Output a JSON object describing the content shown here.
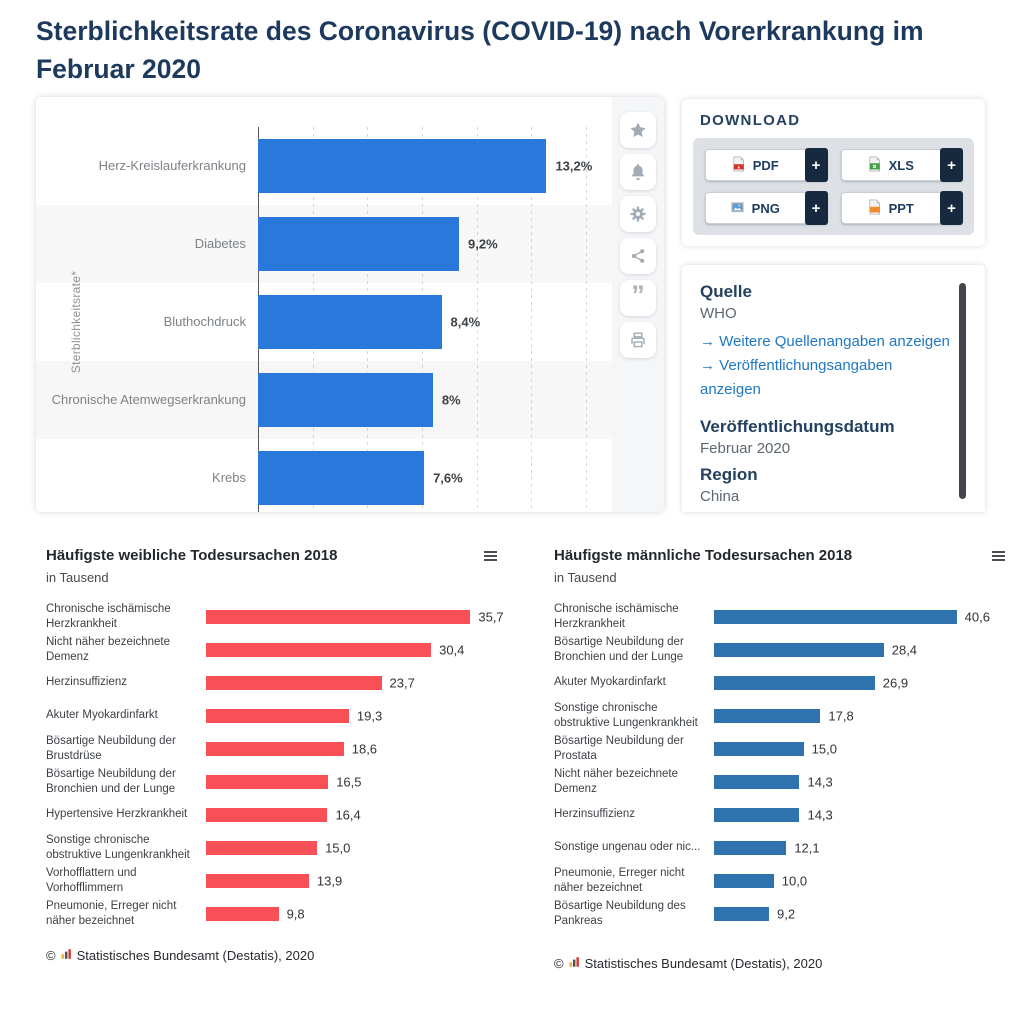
{
  "page": {
    "title_line1": "Sterblichkeitsrate des Coronavirus (COVID-19) nach Vorerkrankung im",
    "title_line2": "Februar 2020"
  },
  "toolbar": {
    "icons": [
      "favorite-star",
      "notification-bell",
      "settings-gear",
      "share",
      "citation-quote",
      "print"
    ],
    "quote_glyph": "”"
  },
  "download": {
    "heading": "DOWNLOAD",
    "plus_label": "+",
    "buttons": [
      {
        "label": "PDF",
        "icon": "pdf-file-icon"
      },
      {
        "label": "XLS",
        "icon": "xls-file-icon"
      },
      {
        "label": "PNG",
        "icon": "png-file-icon"
      },
      {
        "label": "PPT",
        "icon": "ppt-file-icon"
      }
    ]
  },
  "info": {
    "source_heading": "Quelle",
    "source_value": "WHO",
    "link_arrow": "→",
    "link1": "Weitere Quellenangaben anzeigen",
    "link2": "Veröffentlichungsangaben anzeigen",
    "date_heading": "Veröffentlichungsdatum",
    "date_value": "Februar 2020",
    "region_heading": "Region",
    "region_value": "China"
  },
  "chart_data": [
    {
      "id": "covid-mortality",
      "type": "bar",
      "orientation": "horizontal",
      "title": "Sterblichkeitsrate des Coronavirus (COVID-19) nach Vorerkrankung im Februar 2020",
      "ylabel": "Sterblichkeitsrate*",
      "categories": [
        "Herz-Kreislauferkrankung",
        "Diabetes",
        "Bluthochdruck",
        "Chronische Atemwegserkrankung",
        "Krebs"
      ],
      "values": [
        13.2,
        9.2,
        8.4,
        8,
        7.6
      ],
      "value_labels": [
        "13,2%",
        "9,2%",
        "8,4%",
        "8%",
        "7,6%"
      ],
      "unit": "%",
      "axis_max": 16.2,
      "gridline_step": 2.5,
      "grid": "dotted-vertical",
      "bar_color": "#2a78dc",
      "row_stripes": true
    },
    {
      "id": "female-causes-of-death",
      "type": "bar",
      "orientation": "horizontal",
      "title": "Häufigste weibliche Todesursachen 2018",
      "subtitle": "in Tausend",
      "categories": [
        "Chronische ischämische Herzkrankheit",
        "Nicht näher bezeichnete Demenz",
        "Herzinsuffizienz",
        "Akuter Myokardinfarkt",
        "Bösartige Neubildung der Brustdrüse",
        "Bösartige Neubildung der Bronchien und der Lunge",
        "Hypertensive Herzkrankheit",
        "Sonstige chronische obstruktive Lungenkrankheit",
        "Vorhofflattern und Vorhofflimmern",
        "Pneumonie, Erreger nicht näher bezeichnet"
      ],
      "values": [
        35.7,
        30.4,
        23.7,
        19.3,
        18.6,
        16.5,
        16.4,
        15.0,
        13.9,
        9.8
      ],
      "value_labels": [
        "35,7",
        "30,4",
        "23,7",
        "19,3",
        "18,6",
        "16,5",
        "16,4",
        "15,0",
        "13,9",
        "9,8"
      ],
      "scale_max": 37,
      "grid": "off",
      "bar_color": "#f94f57",
      "copyright": "©",
      "source": "Statistisches Bundesamt (Destatis), 2020"
    },
    {
      "id": "male-causes-of-death",
      "type": "bar",
      "orientation": "horizontal",
      "title": "Häufigste männliche Todesursachen 2018",
      "subtitle": "in Tausend",
      "categories": [
        "Chronische ischämische Herzkrankheit",
        "Bösartige Neubildung der Bronchien und der Lunge",
        "Akuter Myokardinfarkt",
        "Sonstige chronische obstruktive Lungenkrankheit",
        "Bösartige Neubildung der Prostata",
        "Nicht näher bezeichnete Demenz",
        "Herzinsuffizienz",
        "Sonstige ungenau oder nic...",
        "Pneumonie, Erreger nicht näher bezeichnet",
        "Bösartige Neubildung des Pankreas"
      ],
      "values": [
        40.6,
        28.4,
        26.9,
        17.8,
        15.0,
        14.3,
        14.3,
        12.1,
        10.0,
        9.2
      ],
      "value_labels": [
        "40,6",
        "28,4",
        "26,9",
        "17,8",
        "15,0",
        "14,3",
        "14,3",
        "12,1",
        "10,0",
        "9,2"
      ],
      "scale_max": 43.5,
      "grid": "off",
      "bar_color": "#2e72ae",
      "copyright": "©",
      "source": "Statistisches Bundesamt (Destatis), 2020"
    }
  ],
  "colors": {
    "heading_navy": "#1d3a5e",
    "link_blue": "#1f77c4",
    "statista_bar_blue": "#2a78dc",
    "destatis_red": "#f94f57",
    "destatis_blue": "#2e72ae",
    "plus_box_navy": "#16293f"
  }
}
